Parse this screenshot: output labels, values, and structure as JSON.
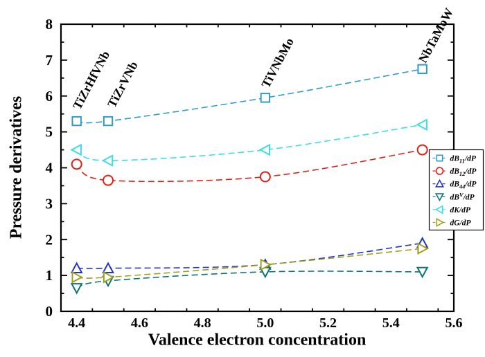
{
  "chart_data": {
    "type": "line",
    "title": "",
    "xlabel": "Valence electron concentration",
    "ylabel": "Pressure derivatives",
    "xlim": [
      4.35,
      5.6
    ],
    "ylim": [
      0,
      8
    ],
    "xticks": [
      4.4,
      4.6,
      4.8,
      5.0,
      5.2,
      5.4,
      5.6
    ],
    "yticks": [
      0,
      1,
      2,
      3,
      4,
      5,
      6,
      7,
      8
    ],
    "grid": false,
    "legend_position": "right",
    "line_style": "dashed",
    "markers_open": true,
    "x": [
      4.4,
      4.5,
      5.0,
      5.5
    ],
    "series": [
      {
        "name": "dB11/dP",
        "label": {
          "pre": "dB",
          "sub": "11",
          "post": "/dP"
        },
        "marker": "square",
        "color": "#2e9bcf",
        "values": [
          5.3,
          5.3,
          5.95,
          6.75
        ]
      },
      {
        "name": "dB12/dP",
        "label": {
          "pre": "dB",
          "sub": "12",
          "post": "/dP"
        },
        "marker": "circle",
        "color": "#e02015",
        "values": [
          4.1,
          3.65,
          3.75,
          4.5
        ]
      },
      {
        "name": "dB44/dP",
        "label": {
          "pre": "dB",
          "sub": "44",
          "post": "/dP"
        },
        "marker": "triangle-up",
        "color": "#2233cc",
        "values": [
          1.2,
          1.2,
          1.3,
          1.9
        ]
      },
      {
        "name": "dBV/dP",
        "label": {
          "pre": "dB",
          "sup": "V",
          "post": "/dP"
        },
        "marker": "triangle-down",
        "color": "#0d7373",
        "values": [
          0.65,
          0.85,
          1.1,
          1.1
        ]
      },
      {
        "name": "dK/dP",
        "label": {
          "pre": "dK",
          "post": "/dP"
        },
        "marker": "triangle-left",
        "color": "#38dfe6",
        "values": [
          4.5,
          4.2,
          4.5,
          5.2
        ]
      },
      {
        "name": "dG/dP",
        "label": {
          "pre": "dG",
          "post": "/dP"
        },
        "marker": "triangle-right",
        "color": "#a0a018",
        "values": [
          0.95,
          0.95,
          1.3,
          1.75
        ]
      }
    ],
    "annotations": [
      {
        "text": "TiZrHfVNb",
        "x": 4.41,
        "y": 5.6,
        "rotation": -62
      },
      {
        "text": "TiZrVNb",
        "x": 4.52,
        "y": 5.65,
        "rotation": -62
      },
      {
        "text": "TiVNbMo",
        "x": 5.01,
        "y": 6.2,
        "rotation": -62
      },
      {
        "text": "NbTaMoW",
        "x": 5.51,
        "y": 6.9,
        "rotation": -62
      }
    ],
    "frame_color": "#000000",
    "background_color": "#ffffff"
  }
}
